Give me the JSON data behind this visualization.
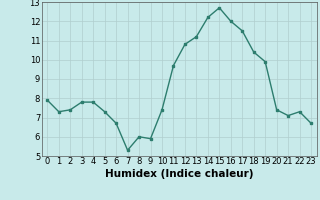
{
  "x": [
    0,
    1,
    2,
    3,
    4,
    5,
    6,
    7,
    8,
    9,
    10,
    11,
    12,
    13,
    14,
    15,
    16,
    17,
    18,
    19,
    20,
    21,
    22,
    23
  ],
  "y": [
    7.9,
    7.3,
    7.4,
    7.8,
    7.8,
    7.3,
    6.7,
    5.3,
    6.0,
    5.9,
    7.4,
    9.7,
    10.8,
    11.2,
    12.2,
    12.7,
    12.0,
    11.5,
    10.4,
    9.9,
    7.4,
    7.1,
    7.3,
    6.7
  ],
  "xlabel": "Humidex (Indice chaleur)",
  "ylim": [
    5,
    13
  ],
  "xlim": [
    -0.5,
    23.5
  ],
  "yticks": [
    5,
    6,
    7,
    8,
    9,
    10,
    11,
    12,
    13
  ],
  "xticks": [
    0,
    1,
    2,
    3,
    4,
    5,
    6,
    7,
    8,
    9,
    10,
    11,
    12,
    13,
    14,
    15,
    16,
    17,
    18,
    19,
    20,
    21,
    22,
    23
  ],
  "xtick_labels": [
    "0",
    "1",
    "2",
    "3",
    "4",
    "5",
    "6",
    "7",
    "8",
    "9",
    "10",
    "11",
    "12",
    "13",
    "14",
    "15",
    "16",
    "17",
    "18",
    "19",
    "20",
    "21",
    "22",
    "23"
  ],
  "line_color": "#2d7d6e",
  "bg_color": "#c8eaea",
  "grid_color": "#b0cece",
  "xlabel_fontsize": 7.5,
  "tick_fontsize": 6.0
}
